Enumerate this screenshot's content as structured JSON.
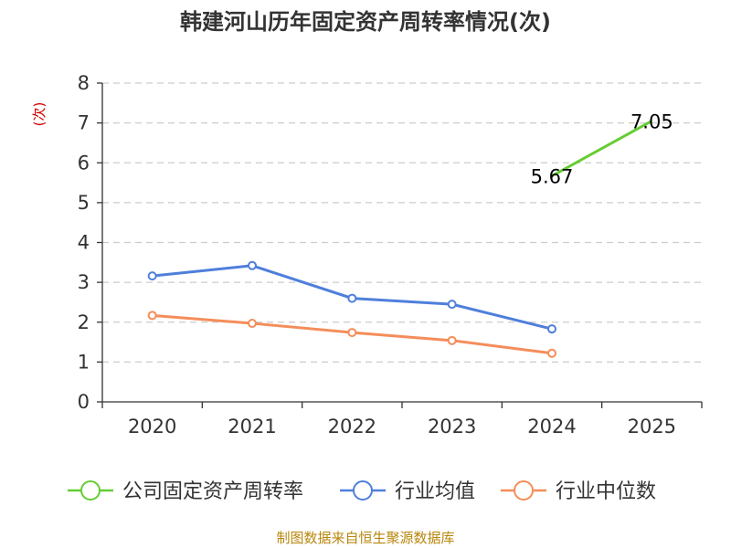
{
  "chart_data": {
    "type": "line",
    "title": "韩建河山历年固定资产周转率情况(次)",
    "ylabel": "(次)",
    "categories": [
      "2020",
      "2021",
      "2022",
      "2023",
      "2024",
      "2025"
    ],
    "ylim": [
      0,
      8
    ],
    "yticks": [
      0,
      1,
      2,
      3,
      4,
      5,
      6,
      7,
      8
    ],
    "grid": true,
    "legend_position": "bottom",
    "series": [
      {
        "name": "公司固定资产周转率",
        "color": "#66cc33",
        "values": [
          null,
          null,
          null,
          null,
          5.67,
          7.05
        ],
        "labels": [
          null,
          null,
          null,
          null,
          "5.67",
          "7.05"
        ]
      },
      {
        "name": "行业均值",
        "color": "#4f7fdb",
        "values": [
          3.16,
          3.42,
          2.6,
          2.45,
          1.83,
          null
        ]
      },
      {
        "name": "行业中位数",
        "color": "#f58d5a",
        "values": [
          2.17,
          1.97,
          1.74,
          1.54,
          1.22,
          null
        ]
      }
    ]
  },
  "footer": {
    "source": "制图数据来自恒生聚源数据库"
  }
}
